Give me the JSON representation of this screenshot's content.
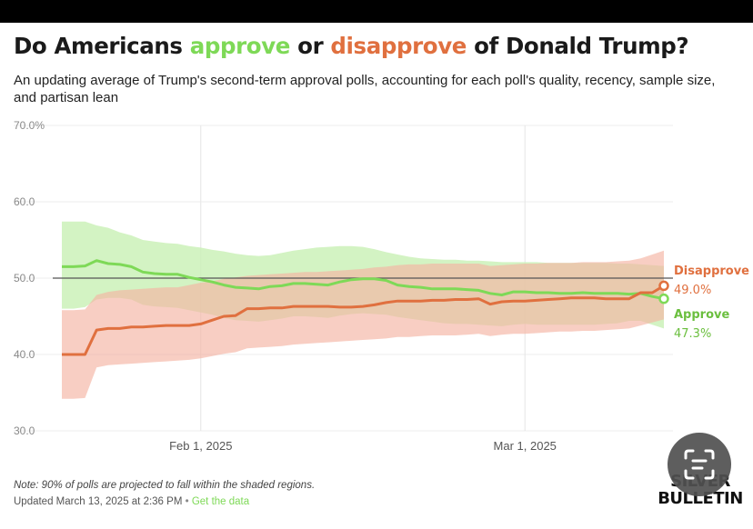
{
  "title": {
    "prefix": "Do Americans ",
    "approve": "approve",
    "middle": " or ",
    "disapprove": "disapprove",
    "suffix": " of Donald Trump?"
  },
  "subtitle": "An updating average of Trump's second-term approval polls, accounting for each poll's quality, recency, sample size, and partisan lean",
  "note": "Note: 90% of polls are projected to fall within the shaded regions.",
  "updated": {
    "text": "Updated March 13, 2025 at 2:36 PM",
    "separator": "•",
    "link": "Get the data"
  },
  "logo": {
    "line1": "SILVER",
    "line2": "BULLETIN"
  },
  "colors": {
    "approve": "#6bbf3f",
    "approve_light": "#7ed957",
    "approve_band": "#c8f0b4",
    "disapprove": "#e0703f",
    "disapprove_band": "#f4b3a3",
    "overlap_band": "#dcc39d",
    "reference_line": "#555555"
  },
  "icons": {
    "screen_search": "visual-search-icon"
  },
  "chart_data": {
    "type": "line",
    "x_start": "2025-01-20",
    "x_end": "2025-03-13",
    "ylim": [
      30,
      70
    ],
    "yticks": [
      30,
      40,
      50,
      60,
      70
    ],
    "ytick_labels": [
      "30.0",
      "40.0",
      "50.0",
      "60.0",
      "70.0%"
    ],
    "xticks": [
      {
        "date": "2025-02-01",
        "label": "Feb 1, 2025"
      },
      {
        "date": "2025-03-01",
        "label": "Mar 1, 2025"
      }
    ],
    "reference_line": 50,
    "x": [
      "2025-01-20",
      "2025-01-21",
      "2025-01-22",
      "2025-01-23",
      "2025-01-24",
      "2025-01-25",
      "2025-01-26",
      "2025-01-27",
      "2025-01-28",
      "2025-01-29",
      "2025-01-30",
      "2025-01-31",
      "2025-02-01",
      "2025-02-02",
      "2025-02-03",
      "2025-02-04",
      "2025-02-05",
      "2025-02-06",
      "2025-02-07",
      "2025-02-08",
      "2025-02-09",
      "2025-02-10",
      "2025-02-11",
      "2025-02-12",
      "2025-02-13",
      "2025-02-14",
      "2025-02-15",
      "2025-02-16",
      "2025-02-17",
      "2025-02-18",
      "2025-02-19",
      "2025-02-20",
      "2025-02-21",
      "2025-02-22",
      "2025-02-23",
      "2025-02-24",
      "2025-02-25",
      "2025-02-26",
      "2025-02-27",
      "2025-02-28",
      "2025-03-01",
      "2025-03-02",
      "2025-03-03",
      "2025-03-04",
      "2025-03-05",
      "2025-03-06",
      "2025-03-07",
      "2025-03-08",
      "2025-03-09",
      "2025-03-10",
      "2025-03-11",
      "2025-03-12",
      "2025-03-13"
    ],
    "series": [
      {
        "name": "Approve",
        "final_label": "47.3%",
        "values": [
          51.5,
          51.5,
          51.6,
          52.3,
          51.9,
          51.8,
          51.5,
          50.8,
          50.6,
          50.5,
          50.5,
          50.1,
          49.8,
          49.5,
          49.1,
          48.8,
          48.7,
          48.6,
          48.9,
          49.0,
          49.3,
          49.3,
          49.2,
          49.1,
          49.5,
          49.8,
          49.9,
          49.9,
          49.7,
          49.1,
          48.9,
          48.8,
          48.6,
          48.6,
          48.6,
          48.5,
          48.4,
          48.0,
          47.8,
          48.2,
          48.2,
          48.1,
          48.1,
          48.0,
          48.0,
          48.1,
          48.0,
          48.0,
          48.0,
          47.9,
          48.0,
          47.6,
          47.3
        ],
        "upper": [
          57.4,
          57.4,
          57.4,
          56.9,
          56.6,
          56.0,
          55.6,
          55.0,
          54.8,
          54.6,
          54.5,
          54.2,
          54.0,
          53.7,
          53.5,
          53.2,
          53.0,
          52.9,
          53.0,
          53.3,
          53.6,
          53.8,
          54.0,
          54.1,
          54.2,
          54.2,
          54.1,
          53.8,
          53.4,
          53.1,
          52.8,
          52.6,
          52.5,
          52.4,
          52.4,
          52.3,
          52.3,
          52.2,
          52.1,
          52.1,
          52.1,
          52.1,
          52.0,
          52.0,
          52.0,
          52.0,
          52.0,
          52.0,
          51.9,
          51.9,
          51.8,
          51.7,
          51.6
        ],
        "lower": [
          46.0,
          46.0,
          46.2,
          47.2,
          47.4,
          47.4,
          47.2,
          46.5,
          46.3,
          46.2,
          46.1,
          45.8,
          45.5,
          45.2,
          44.8,
          44.5,
          44.4,
          44.3,
          44.5,
          44.7,
          45.0,
          45.0,
          44.9,
          44.8,
          45.1,
          45.3,
          45.4,
          45.3,
          45.2,
          44.9,
          44.7,
          44.5,
          44.3,
          44.1,
          44.0,
          44.0,
          43.9,
          43.8,
          43.7,
          43.9,
          44.0,
          43.9,
          43.9,
          43.9,
          43.9,
          43.9,
          43.9,
          44.0,
          44.1,
          44.4,
          44.4,
          43.9,
          43.4
        ]
      },
      {
        "name": "Disapprove",
        "final_label": "49.0%",
        "values": [
          40.0,
          40.0,
          40.0,
          43.2,
          43.4,
          43.4,
          43.6,
          43.6,
          43.7,
          43.8,
          43.8,
          43.8,
          44.0,
          44.5,
          45.0,
          45.1,
          46.0,
          46.0,
          46.1,
          46.1,
          46.3,
          46.3,
          46.3,
          46.3,
          46.2,
          46.2,
          46.3,
          46.5,
          46.8,
          47.0,
          47.0,
          47.0,
          47.1,
          47.1,
          47.2,
          47.2,
          47.3,
          46.6,
          46.9,
          47.0,
          47.0,
          47.1,
          47.2,
          47.3,
          47.4,
          47.4,
          47.4,
          47.3,
          47.3,
          47.3,
          48.1,
          48.1,
          49.0
        ],
        "upper": [
          45.8,
          45.8,
          45.9,
          47.8,
          48.2,
          48.4,
          48.5,
          48.6,
          48.7,
          48.8,
          48.8,
          49.1,
          49.4,
          49.6,
          49.9,
          50.1,
          50.3,
          50.4,
          50.5,
          50.6,
          50.7,
          50.8,
          50.8,
          50.9,
          51.0,
          51.1,
          51.2,
          51.4,
          51.5,
          51.7,
          51.8,
          51.8,
          51.9,
          51.9,
          51.9,
          51.9,
          51.9,
          51.6,
          51.7,
          51.8,
          51.9,
          51.9,
          52.0,
          52.0,
          52.0,
          52.1,
          52.1,
          52.1,
          52.2,
          52.3,
          52.6,
          53.1,
          53.6
        ],
        "lower": [
          34.2,
          34.2,
          34.3,
          38.3,
          38.6,
          38.7,
          38.8,
          38.9,
          39.0,
          39.1,
          39.2,
          39.3,
          39.5,
          39.8,
          40.1,
          40.3,
          40.8,
          40.9,
          41.0,
          41.1,
          41.3,
          41.4,
          41.5,
          41.6,
          41.7,
          41.8,
          41.9,
          42.0,
          42.1,
          42.3,
          42.3,
          42.4,
          42.5,
          42.5,
          42.5,
          42.6,
          42.7,
          42.4,
          42.6,
          42.7,
          42.7,
          42.8,
          42.9,
          43.0,
          43.0,
          43.1,
          43.1,
          43.2,
          43.3,
          43.4,
          43.8,
          44.2,
          44.6
        ]
      }
    ]
  }
}
